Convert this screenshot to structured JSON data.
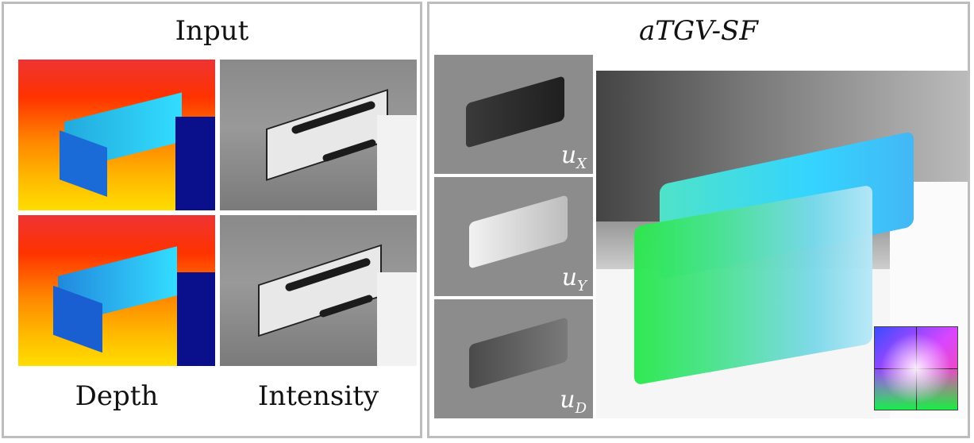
{
  "left_panel": {
    "title": "Input",
    "captions": {
      "depth": "Depth",
      "intensity": "Intensity"
    }
  },
  "right_panel": {
    "title": "aTGV-SF",
    "flow_labels": [
      {
        "base": "u",
        "sub": "X"
      },
      {
        "base": "u",
        "sub": "Y"
      },
      {
        "base": "u",
        "sub": "D"
      }
    ]
  },
  "colors": {
    "border": "#bdbdbd",
    "depth_navy": "#0a0f8c",
    "flow_bg": "#8c8c8c"
  }
}
